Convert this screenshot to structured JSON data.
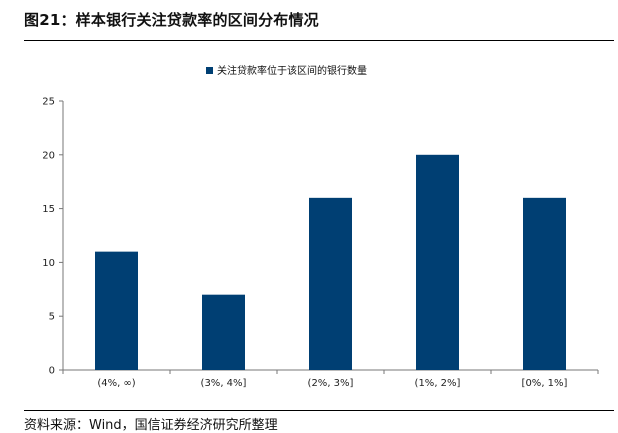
{
  "figure": {
    "title": "图21：样本银行关注贷款率的区间分布情况",
    "source": "资料来源：Wind，国信证券经济研究所整理"
  },
  "chart_data": {
    "type": "bar",
    "title": "",
    "xlabel": "",
    "ylabel": "",
    "categories": [
      "(4%, ∞)",
      "(3%, 4%]",
      "(2%, 3%]",
      "(1%, 2%]",
      "[0%, 1%]"
    ],
    "series": [
      {
        "name": "关注贷款率位于该区间的银行数量",
        "values": [
          11,
          7,
          16,
          20,
          16
        ],
        "color": "#003F73"
      }
    ],
    "ylim": [
      0,
      25
    ],
    "yticks": [
      0,
      5,
      10,
      15,
      20,
      25
    ],
    "grid": false,
    "legend_position": "top-center"
  }
}
